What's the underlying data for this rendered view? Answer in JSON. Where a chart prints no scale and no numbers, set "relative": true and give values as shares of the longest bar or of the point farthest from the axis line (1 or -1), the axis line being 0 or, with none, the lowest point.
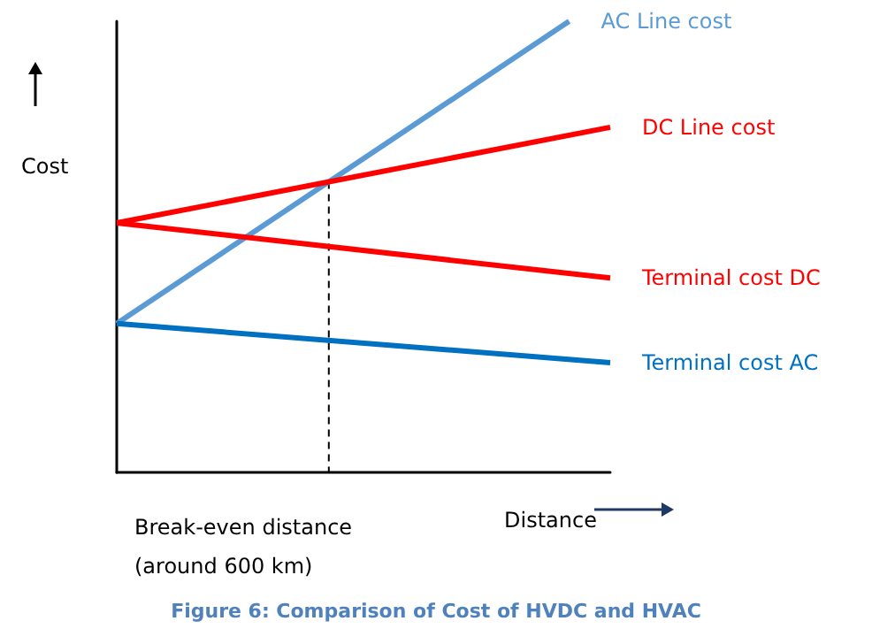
{
  "chart_data": {
    "type": "line",
    "relative": true,
    "title": "Figure 6: Comparison of Cost of HVDC and HVAC",
    "xlabel": "Distance",
    "ylabel": "Cost",
    "categories": [
      null,
      null,
      null,
      null,
      null,
      null,
      null,
      null,
      null,
      null,
      null,
      null,
      null
    ],
    "series": [
      {
        "name": "AC Line cost",
        "color": "#5b9bd5",
        "values": [
          0.33,
          null,
          null,
          null,
          null,
          null,
          null,
          null,
          null,
          null,
          null,
          1,
          null
        ]
      },
      {
        "name": "DC Line cost",
        "color": "#ff0000",
        "values": [
          0.553,
          null,
          null,
          null,
          null,
          null,
          null,
          null,
          null,
          null,
          null,
          null,
          0.765
        ]
      },
      {
        "name": "Terminal cost DC",
        "color": "#ff0000",
        "values": [
          0.553,
          null,
          null,
          null,
          null,
          null,
          null,
          null,
          null,
          null,
          null,
          null,
          0.431
        ]
      },
      {
        "name": "Terminal cost AC",
        "color": "#0070c0",
        "values": [
          0.33,
          null,
          null,
          null,
          null,
          null,
          null,
          null,
          null,
          null,
          null,
          null,
          0.243
        ]
      }
    ],
    "annotations": [
      "Break-even distance\n(around 600 km)"
    ],
    "legend": false,
    "grid": false,
    "line_style": "solid"
  }
}
